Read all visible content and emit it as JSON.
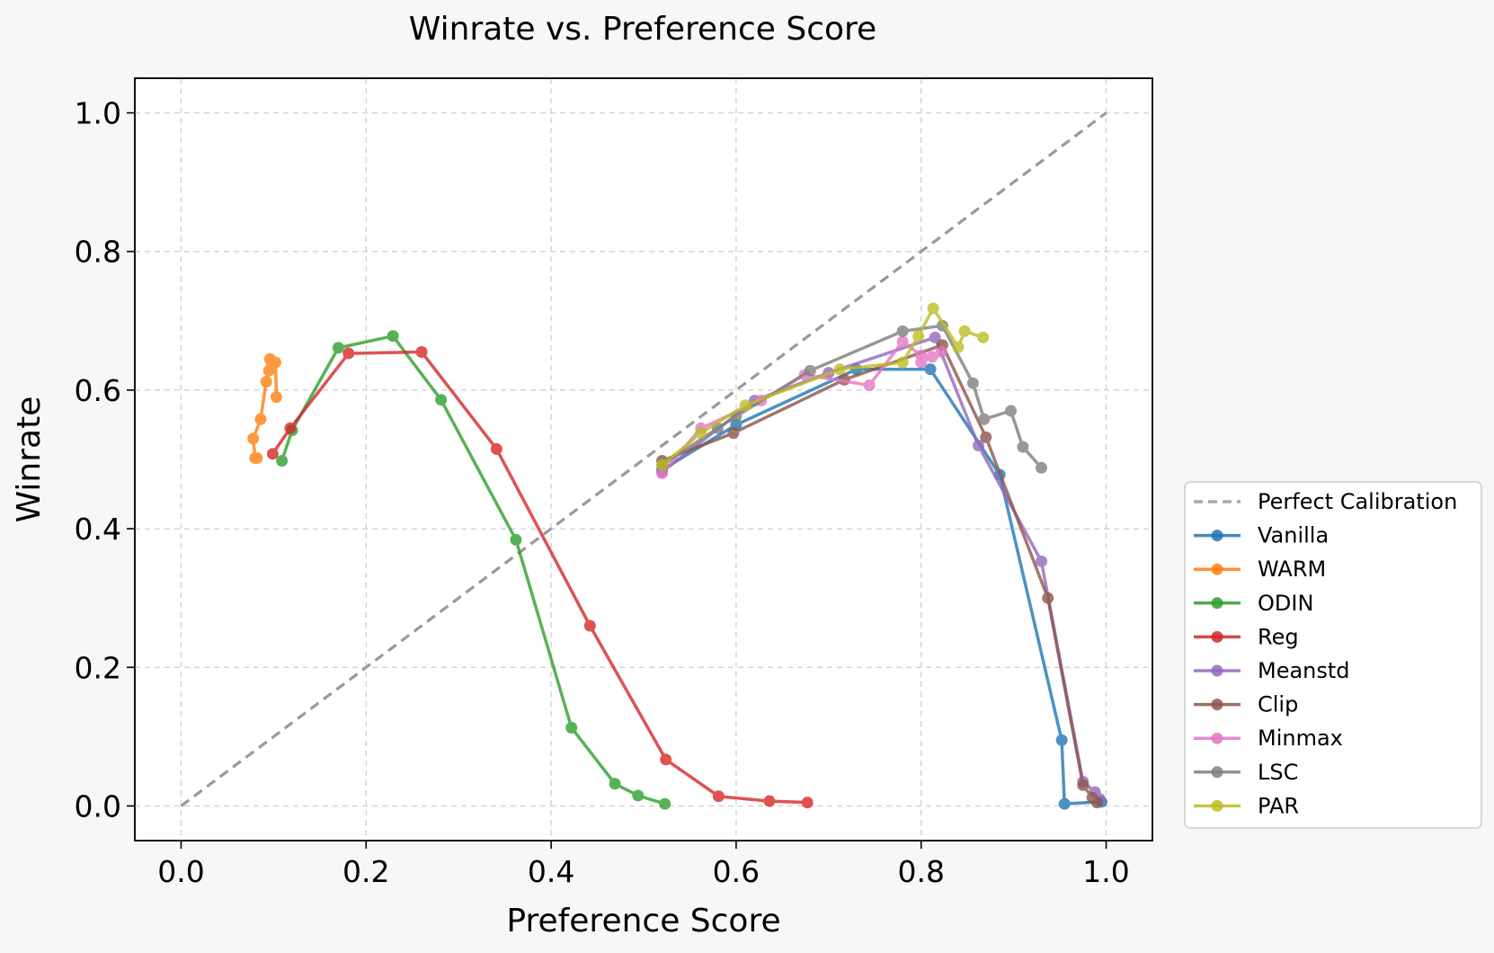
{
  "chart_data": {
    "type": "line",
    "title": "Winrate vs. Preference Score",
    "xlabel": "Preference Score",
    "ylabel": "Winrate",
    "xlim": [
      -0.05,
      1.05
    ],
    "ylim": [
      -0.05,
      1.05
    ],
    "xticks": [
      0.0,
      0.2,
      0.4,
      0.6,
      0.8,
      1.0
    ],
    "yticks": [
      0.0,
      0.2,
      0.4,
      0.6,
      0.8,
      1.0
    ],
    "xtick_labels": [
      "0.0",
      "0.2",
      "0.4",
      "0.6",
      "0.8",
      "1.0"
    ],
    "ytick_labels": [
      "0.0",
      "0.2",
      "0.4",
      "0.6",
      "0.8",
      "1.0"
    ],
    "grid": true,
    "legend_position": "outside-right",
    "reference_line": {
      "name": "Perfect Calibration",
      "color": "#999999",
      "x": [
        0,
        1
      ],
      "y": [
        0,
        1
      ]
    },
    "series": [
      {
        "name": "Vanilla",
        "color": "#1f77b4",
        "x": [
          0.52,
          0.6,
          0.73,
          0.81,
          0.885,
          0.952,
          0.955,
          0.995
        ],
        "y": [
          0.485,
          0.55,
          0.63,
          0.63,
          0.478,
          0.095,
          0.003,
          0.006
        ]
      },
      {
        "name": "WARM",
        "color": "#ff7f0e",
        "x": [
          0.082,
          0.08,
          0.078,
          0.086,
          0.092,
          0.095,
          0.096,
          0.098,
          0.102,
          0.103
        ],
        "y": [
          0.502,
          0.502,
          0.53,
          0.558,
          0.612,
          0.628,
          0.645,
          0.635,
          0.64,
          0.59
        ]
      },
      {
        "name": "ODIN",
        "color": "#2ca02c",
        "x": [
          0.109,
          0.12,
          0.17,
          0.229,
          0.281,
          0.362,
          0.422,
          0.469,
          0.494,
          0.523
        ],
        "y": [
          0.498,
          0.542,
          0.661,
          0.678,
          0.586,
          0.384,
          0.113,
          0.032,
          0.015,
          0.003
        ]
      },
      {
        "name": "Reg",
        "color": "#d62728",
        "x": [
          0.099,
          0.118,
          0.181,
          0.26,
          0.341,
          0.442,
          0.524,
          0.581,
          0.636,
          0.677
        ],
        "y": [
          0.508,
          0.545,
          0.653,
          0.655,
          0.515,
          0.26,
          0.067,
          0.014,
          0.007,
          0.005
        ]
      },
      {
        "name": "Meanstd",
        "color": "#9467bd",
        "x": [
          0.52,
          0.62,
          0.7,
          0.815,
          0.862,
          0.93,
          0.975,
          0.988,
          0.993
        ],
        "y": [
          0.482,
          0.585,
          0.625,
          0.676,
          0.52,
          0.353,
          0.035,
          0.02,
          0.01
        ]
      },
      {
        "name": "Clip",
        "color": "#8c564b",
        "x": [
          0.52,
          0.597,
          0.717,
          0.823,
          0.87,
          0.937,
          0.975,
          0.985,
          0.99
        ],
        "y": [
          0.498,
          0.538,
          0.615,
          0.665,
          0.532,
          0.3,
          0.03,
          0.012,
          0.005
        ]
      },
      {
        "name": "Minmax",
        "color": "#e377c2",
        "x": [
          0.52,
          0.562,
          0.627,
          0.674,
          0.744,
          0.78,
          0.8,
          0.812,
          0.822,
          0.8
        ],
        "y": [
          0.48,
          0.545,
          0.585,
          0.622,
          0.607,
          0.67,
          0.65,
          0.648,
          0.655,
          0.64
        ]
      },
      {
        "name": "LSC",
        "color": "#7f7f7f",
        "x": [
          0.52,
          0.58,
          0.6,
          0.68,
          0.78,
          0.823,
          0.856,
          0.868,
          0.897,
          0.91,
          0.93
        ],
        "y": [
          0.492,
          0.545,
          0.562,
          0.628,
          0.685,
          0.693,
          0.61,
          0.558,
          0.57,
          0.518,
          0.488
        ]
      },
      {
        "name": "PAR",
        "color": "#bcbd22",
        "x": [
          0.52,
          0.562,
          0.61,
          0.712,
          0.78,
          0.797,
          0.813,
          0.84,
          0.847,
          0.867
        ],
        "y": [
          0.492,
          0.538,
          0.578,
          0.63,
          0.64,
          0.678,
          0.718,
          0.662,
          0.685,
          0.676
        ]
      }
    ]
  }
}
